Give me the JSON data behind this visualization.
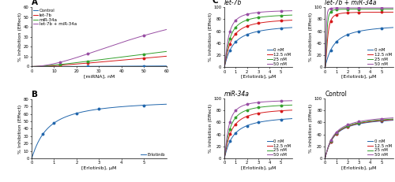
{
  "panel_A": {
    "title": "A",
    "xlabel": "[miRNA], nM",
    "ylabel": "% Inhibition (Effect)",
    "xlim": [
      0,
      60
    ],
    "ylim": [
      0,
      60
    ],
    "yticks": [
      0,
      10,
      20,
      30,
      40,
      50,
      60
    ],
    "xticks": [
      0,
      10,
      20,
      30,
      40,
      50,
      60
    ],
    "curves": [
      {
        "label": "Control",
        "color": "#2166ac",
        "Emax": 4,
        "EC50": 200,
        "n": 1.5,
        "pts": [
          12.5,
          25,
          50
        ]
      },
      {
        "label": "let-7b",
        "color": "#d6191b",
        "Emax": 40,
        "EC50": 120,
        "n": 1.5,
        "pts": [
          12.5,
          25,
          50
        ]
      },
      {
        "label": "miR-34a",
        "color": "#33a02c",
        "Emax": 48,
        "EC50": 100,
        "n": 1.5,
        "pts": [
          12.5,
          25,
          50
        ]
      },
      {
        "label": "let-7b + miR-34a",
        "color": "#984ea3",
        "Emax": 75,
        "EC50": 60,
        "n": 1.8,
        "pts": [
          12.5,
          25,
          50
        ]
      }
    ]
  },
  "panel_B": {
    "title": "B",
    "xlabel": "[Erlotinib], μM",
    "ylabel": "% Inhibition (Effect)",
    "xlim": [
      0,
      6
    ],
    "ylim": [
      0,
      80
    ],
    "yticks": [
      0,
      10,
      20,
      30,
      40,
      50,
      60,
      70,
      80
    ],
    "xticks": [
      0,
      1,
      2,
      3,
      4,
      5
    ],
    "curves": [
      {
        "label": "Erlotinib",
        "color": "#2166ac",
        "Emax": 80,
        "EC50": 0.7,
        "n": 1.1,
        "pts": [
          0.5,
          1,
          2,
          3,
          5
        ]
      }
    ]
  },
  "panel_C": {
    "subpanels": [
      {
        "title": "let-7b",
        "title_italic": true,
        "xlabel": "[Erlotinib], μM",
        "ylabel": "% Inhibition (Effect)",
        "xlim": [
          0,
          6
        ],
        "ylim": [
          0,
          100
        ],
        "yticks": [
          0,
          20,
          40,
          60,
          80,
          100
        ],
        "xticks": [
          0,
          1,
          2,
          3,
          4,
          5
        ],
        "curves": [
          {
            "label": "0 nM",
            "color": "#2166ac",
            "Emax": 73,
            "EC50": 0.75,
            "n": 1.1,
            "pts": [
              0.5,
              1,
              2,
              3,
              5
            ]
          },
          {
            "label": "12.5 nM",
            "color": "#d6191b",
            "Emax": 83,
            "EC50": 0.55,
            "n": 1.2,
            "pts": [
              0.5,
              1,
              2,
              3,
              5
            ]
          },
          {
            "label": "25 nM",
            "color": "#33a02c",
            "Emax": 90,
            "EC50": 0.45,
            "n": 1.3,
            "pts": [
              0.5,
              1,
              2,
              3,
              5
            ]
          },
          {
            "label": "50 nM",
            "color": "#984ea3",
            "Emax": 96,
            "EC50": 0.35,
            "n": 1.4,
            "pts": [
              0.5,
              1,
              2,
              3,
              5
            ]
          }
        ]
      },
      {
        "title": "let-7b + miR-34a",
        "title_italic": true,
        "xlabel": "[Erlotinib], μM",
        "ylabel": "% Inhibition (Effect)",
        "xlim": [
          0,
          6
        ],
        "ylim": [
          0,
          100
        ],
        "yticks": [
          0,
          20,
          40,
          60,
          80,
          100
        ],
        "xticks": [
          0,
          1,
          2,
          3,
          4,
          5
        ],
        "curves": [
          {
            "label": "0 nM",
            "color": "#2166ac",
            "Emax": 73,
            "EC50": 0.75,
            "n": 1.1,
            "pts": [
              0.5,
              1,
              2,
              3,
              5
            ]
          },
          {
            "label": "12.5 nM",
            "color": "#d6191b",
            "Emax": 92,
            "EC50": 0.22,
            "n": 2.0,
            "pts": [
              0.5,
              1,
              2,
              3,
              5
            ]
          },
          {
            "label": "25 nM",
            "color": "#33a02c",
            "Emax": 97,
            "EC50": 0.15,
            "n": 2.5,
            "pts": [
              0.5,
              1,
              2,
              3,
              5
            ]
          },
          {
            "label": "50 nM",
            "color": "#984ea3",
            "Emax": 99,
            "EC50": 0.1,
            "n": 3.0,
            "pts": [
              0.5,
              1,
              2,
              3,
              5
            ]
          }
        ]
      },
      {
        "title": "miR-34a",
        "title_italic": true,
        "xlabel": "[Erlotinib], μM",
        "ylabel": "% Inhibition (Effect)",
        "xlim": [
          0,
          6
        ],
        "ylim": [
          0,
          100
        ],
        "yticks": [
          0,
          20,
          40,
          60,
          80,
          100
        ],
        "xticks": [
          0,
          1,
          2,
          3,
          4,
          5
        ],
        "curves": [
          {
            "label": "0 nM",
            "color": "#2166ac",
            "Emax": 73,
            "EC50": 0.75,
            "n": 1.1,
            "pts": [
              0.5,
              1,
              2,
              3,
              5
            ]
          },
          {
            "label": "12.5 nM",
            "color": "#d6191b",
            "Emax": 85,
            "EC50": 0.55,
            "n": 1.2,
            "pts": [
              0.5,
              1,
              2,
              3,
              5
            ]
          },
          {
            "label": "25 nM",
            "color": "#33a02c",
            "Emax": 92,
            "EC50": 0.45,
            "n": 1.3,
            "pts": [
              0.5,
              1,
              2,
              3,
              5
            ]
          },
          {
            "label": "50 nM",
            "color": "#984ea3",
            "Emax": 98,
            "EC50": 0.35,
            "n": 1.4,
            "pts": [
              0.5,
              1,
              2,
              3,
              5
            ]
          }
        ]
      },
      {
        "title": "Control",
        "title_italic": false,
        "xlabel": "[Erlotinib], μM",
        "ylabel": "% Inhibition (Effect)",
        "xlim": [
          0,
          6
        ],
        "ylim": [
          0,
          100
        ],
        "yticks": [
          0,
          20,
          40,
          60,
          80,
          100
        ],
        "xticks": [
          0,
          1,
          2,
          3,
          4,
          5
        ],
        "curves": [
          {
            "label": "0 nM",
            "color": "#2166ac",
            "Emax": 70,
            "EC50": 0.75,
            "n": 1.1,
            "pts": [
              0.5,
              1,
              2,
              3,
              5
            ]
          },
          {
            "label": "12.5 nM",
            "color": "#d6191b",
            "Emax": 71,
            "EC50": 0.74,
            "n": 1.1,
            "pts": [
              0.5,
              1,
              2,
              3,
              5
            ]
          },
          {
            "label": "25 nM",
            "color": "#33a02c",
            "Emax": 72,
            "EC50": 0.73,
            "n": 1.1,
            "pts": [
              0.5,
              1,
              2,
              3,
              5
            ]
          },
          {
            "label": "50 nM",
            "color": "#984ea3",
            "Emax": 74,
            "EC50": 0.72,
            "n": 1.1,
            "pts": [
              0.5,
              1,
              2,
              3,
              5
            ]
          }
        ]
      }
    ]
  },
  "background_color": "#ffffff",
  "spine_color": "#000000",
  "tick_color": "#000000",
  "label_fontsize": 4.5,
  "title_fontsize": 5.5,
  "legend_fontsize": 4,
  "tick_fontsize": 3.8,
  "linewidth": 0.7,
  "markersize": 1.8,
  "marker": "o"
}
